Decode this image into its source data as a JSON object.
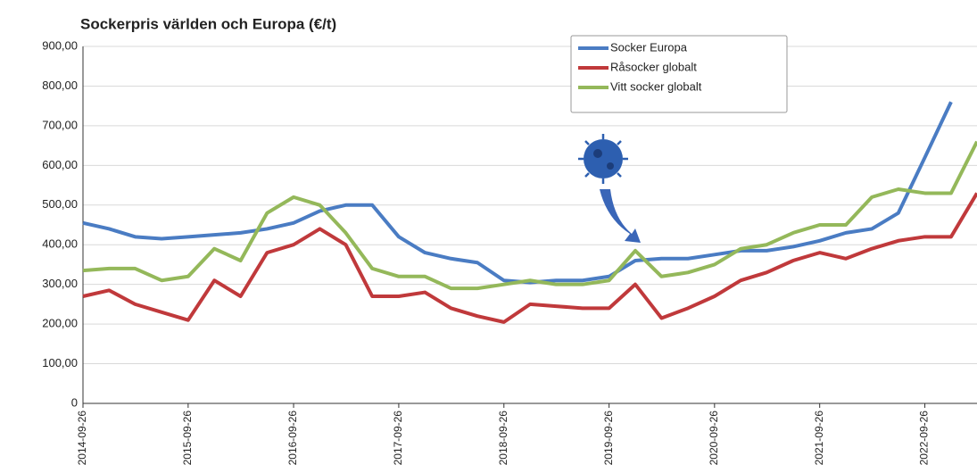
{
  "chart_data": {
    "type": "line",
    "title": "Sockerpris världen och Europa (€/t)",
    "x": [
      "2014-09-26",
      "2014-12-26",
      "2015-03-26",
      "2015-06-26",
      "2015-09-26",
      "2015-12-26",
      "2016-03-26",
      "2016-06-26",
      "2016-09-26",
      "2016-12-26",
      "2017-03-26",
      "2017-06-26",
      "2017-09-26",
      "2017-12-26",
      "2018-03-26",
      "2018-06-26",
      "2018-09-26",
      "2018-12-26",
      "2019-03-26",
      "2019-06-26",
      "2019-09-26",
      "2019-12-26",
      "2020-03-26",
      "2020-06-26",
      "2020-09-26",
      "2020-12-26",
      "2021-03-26",
      "2021-06-26",
      "2021-09-26",
      "2021-12-26",
      "2022-03-26",
      "2022-06-26",
      "2022-09-26",
      "2022-12-26",
      "2023-03-26"
    ],
    "series": [
      {
        "name": "Socker Europa",
        "color": "#4a7cc3",
        "values": [
          455,
          440,
          420,
          415,
          420,
          425,
          430,
          440,
          455,
          485,
          500,
          500,
          420,
          380,
          365,
          355,
          310,
          305,
          310,
          310,
          320,
          360,
          365,
          365,
          375,
          385,
          385,
          395,
          410,
          430,
          440,
          480,
          620,
          760,
          null
        ]
      },
      {
        "name": "Råsocker globalt",
        "color": "#c0393b",
        "values": [
          270,
          285,
          250,
          230,
          210,
          310,
          270,
          380,
          400,
          440,
          400,
          270,
          270,
          280,
          240,
          220,
          205,
          250,
          245,
          240,
          240,
          300,
          215,
          240,
          270,
          310,
          330,
          360,
          380,
          365,
          390,
          410,
          420,
          420,
          530
        ]
      },
      {
        "name": "Vitt socker globalt",
        "color": "#94b85a",
        "values": [
          335,
          340,
          340,
          310,
          320,
          390,
          360,
          480,
          520,
          500,
          430,
          340,
          320,
          320,
          290,
          290,
          300,
          310,
          300,
          300,
          310,
          385,
          320,
          330,
          350,
          390,
          400,
          430,
          450,
          450,
          520,
          540,
          530,
          530,
          660
        ]
      }
    ],
    "xlim": [
      "2014-09-26",
      "2023-03-26"
    ],
    "xticks": [
      "2014-09-26",
      "2015-09-26",
      "2016-09-26",
      "2017-09-26",
      "2018-09-26",
      "2019-09-26",
      "2020-09-26",
      "2021-09-26",
      "2022-09-26"
    ],
    "ylim": [
      0,
      900
    ],
    "yticks": [
      {
        "value": 0,
        "label": "0"
      },
      {
        "value": 100,
        "label": "100,00"
      },
      {
        "value": 200,
        "label": "200,00"
      },
      {
        "value": 300,
        "label": "300,00"
      },
      {
        "value": 400,
        "label": "400,00"
      },
      {
        "value": 500,
        "label": "500,00"
      },
      {
        "value": 600,
        "label": "600,00"
      },
      {
        "value": 700,
        "label": "700,00"
      },
      {
        "value": 800,
        "label": "800,00"
      },
      {
        "value": 900,
        "label": "900,00"
      }
    ],
    "grid": true,
    "legend": "upper right"
  }
}
